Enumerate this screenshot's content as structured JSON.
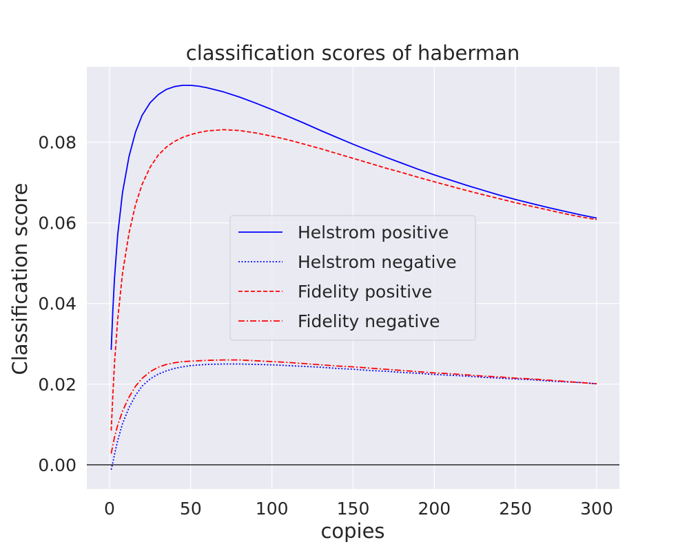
{
  "chart_data": {
    "type": "line",
    "title": "classification scores of haberman",
    "xlabel": "copies",
    "ylabel": "Classification score",
    "xlim": [
      -14,
      314
    ],
    "ylim": [
      -0.006,
      0.0987
    ],
    "x_ticks": [
      0,
      50,
      100,
      150,
      200,
      250,
      300
    ],
    "x_tick_labels": [
      "0",
      "50",
      "100",
      "150",
      "200",
      "250",
      "300"
    ],
    "y_ticks": [
      0.0,
      0.02,
      0.04,
      0.06,
      0.08
    ],
    "y_tick_labels": [
      "0.00",
      "0.02",
      "0.04",
      "0.06",
      "0.08"
    ],
    "grid": true,
    "background": "#eaeaf2",
    "zero_line": true,
    "legend_position": "center-right",
    "series": [
      {
        "name": "Helstrom positive",
        "color": "#0000ff",
        "style": "solid",
        "x": [
          1,
          2,
          3,
          5,
          8,
          12,
          16,
          20,
          25,
          30,
          35,
          40,
          45,
          50,
          55,
          60,
          70,
          80,
          90,
          100,
          110,
          120,
          130,
          140,
          150,
          160,
          170,
          180,
          190,
          200,
          210,
          220,
          230,
          240,
          250,
          260,
          270,
          280,
          290,
          300
        ],
        "y": [
          0.0285,
          0.038,
          0.046,
          0.057,
          0.0675,
          0.0765,
          0.0825,
          0.0866,
          0.0898,
          0.0918,
          0.0931,
          0.0938,
          0.0941,
          0.0941,
          0.0939,
          0.0935,
          0.0925,
          0.0912,
          0.0897,
          0.0881,
          0.0864,
          0.0847,
          0.0829,
          0.0812,
          0.0795,
          0.0779,
          0.0763,
          0.0748,
          0.0733,
          0.0719,
          0.0706,
          0.0693,
          0.0681,
          0.0669,
          0.0658,
          0.0648,
          0.0638,
          0.0629,
          0.062,
          0.0612
        ]
      },
      {
        "name": "Helstrom negative",
        "color": "#0000ff",
        "style": "dotted",
        "x": [
          1,
          2,
          3,
          5,
          8,
          12,
          16,
          20,
          25,
          30,
          35,
          40,
          45,
          50,
          60,
          70,
          80,
          90,
          100,
          110,
          120,
          130,
          140,
          150,
          160,
          170,
          180,
          190,
          200,
          210,
          220,
          230,
          240,
          250,
          260,
          270,
          280,
          290,
          300
        ],
        "y": [
          -0.0012,
          0.0005,
          0.0025,
          0.006,
          0.0102,
          0.0142,
          0.0172,
          0.0195,
          0.0213,
          0.0225,
          0.0233,
          0.0239,
          0.0243,
          0.0246,
          0.0249,
          0.025,
          0.025,
          0.0249,
          0.0248,
          0.0246,
          0.0244,
          0.0242,
          0.0239,
          0.0237,
          0.0234,
          0.0232,
          0.0229,
          0.0227,
          0.0224,
          0.0222,
          0.022,
          0.0217,
          0.0215,
          0.0213,
          0.0211,
          0.0208,
          0.0206,
          0.0204,
          0.0201
        ]
      },
      {
        "name": "Fidelity positive",
        "color": "#ff0000",
        "style": "dashed",
        "x": [
          1,
          2,
          3,
          5,
          8,
          12,
          16,
          20,
          25,
          30,
          35,
          40,
          45,
          50,
          55,
          60,
          70,
          80,
          90,
          100,
          110,
          120,
          130,
          140,
          150,
          160,
          170,
          180,
          190,
          200,
          210,
          220,
          230,
          240,
          250,
          260,
          270,
          280,
          290,
          300
        ],
        "y": [
          0.0085,
          0.017,
          0.025,
          0.036,
          0.0475,
          0.0575,
          0.0645,
          0.0695,
          0.0738,
          0.0768,
          0.0788,
          0.0802,
          0.0812,
          0.0819,
          0.0824,
          0.0828,
          0.0831,
          0.0829,
          0.0823,
          0.0815,
          0.0806,
          0.0795,
          0.0784,
          0.0772,
          0.076,
          0.0748,
          0.0736,
          0.0725,
          0.0713,
          0.0702,
          0.0691,
          0.068,
          0.067,
          0.066,
          0.065,
          0.0641,
          0.0632,
          0.0623,
          0.0615,
          0.0608
        ]
      },
      {
        "name": "Fidelity negative",
        "color": "#ff0000",
        "style": "dashdot",
        "x": [
          1,
          2,
          3,
          5,
          8,
          12,
          16,
          20,
          25,
          30,
          35,
          40,
          45,
          50,
          60,
          70,
          80,
          90,
          100,
          110,
          120,
          130,
          140,
          150,
          160,
          170,
          180,
          190,
          200,
          210,
          220,
          230,
          240,
          250,
          260,
          270,
          280,
          290,
          300
        ],
        "y": [
          0.0028,
          0.0048,
          0.0068,
          0.0098,
          0.0133,
          0.0168,
          0.0195,
          0.0214,
          0.0231,
          0.0242,
          0.0249,
          0.0253,
          0.0256,
          0.0257,
          0.0259,
          0.026,
          0.026,
          0.0258,
          0.0256,
          0.0254,
          0.0251,
          0.0248,
          0.0245,
          0.0243,
          0.024,
          0.0237,
          0.0234,
          0.0231,
          0.0228,
          0.0226,
          0.0223,
          0.022,
          0.0218,
          0.0215,
          0.0213,
          0.021,
          0.0207,
          0.0204,
          0.0201
        ]
      }
    ]
  }
}
